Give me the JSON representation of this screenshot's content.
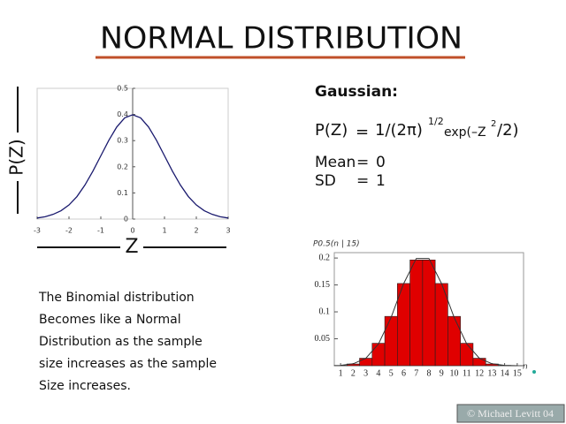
{
  "title": "NORMAL DISTRIBUTION",
  "gaussian": {
    "heading": "Gaussian:",
    "formula": {
      "lhs": "P(Z)",
      "eq": "=",
      "base": "1/(2π)",
      "power": "1/2",
      "fn": "exp(–Z",
      "square": "2",
      "tail": "/2)"
    },
    "stats": [
      [
        "Mean",
        "=",
        "0"
      ],
      [
        "SD",
        "=",
        "1"
      ]
    ]
  },
  "text": [
    "The Binomial distribution",
    "Becomes like a Normal",
    "Distribution as the sample",
    "size increases as the sample",
    "Size increases."
  ],
  "footer": "© Michael Levitt 04",
  "chart_data": [
    {
      "type": "line",
      "xlabel": "Z",
      "ylabel": "P(Z)",
      "x": [
        -3,
        -2.75,
        -2.5,
        -2.25,
        -2,
        -1.75,
        -1.5,
        -1.25,
        -1,
        -0.75,
        -0.5,
        -0.25,
        0,
        0.25,
        0.5,
        0.75,
        1,
        1.25,
        1.5,
        1.75,
        2,
        2.25,
        2.5,
        2.75,
        3
      ],
      "values": [
        0.004,
        0.009,
        0.018,
        0.032,
        0.054,
        0.086,
        0.13,
        0.183,
        0.242,
        0.301,
        0.352,
        0.387,
        0.399,
        0.387,
        0.352,
        0.301,
        0.242,
        0.183,
        0.13,
        0.086,
        0.054,
        0.032,
        0.018,
        0.009,
        0.004
      ],
      "color": "#1a1a6e",
      "xlim": [
        -3,
        3
      ],
      "ylim": [
        0,
        0.5
      ],
      "xticks": [
        -3,
        -2,
        -1,
        0,
        1,
        2,
        3
      ],
      "yticks": [
        0,
        0.1,
        0.2,
        0.3,
        0.4,
        0.5
      ]
    },
    {
      "type": "bar",
      "xlabel": "n",
      "ylabel": "P0.5(n | 15)",
      "x": [
        1,
        2,
        3,
        4,
        5,
        6,
        7,
        8,
        9,
        10,
        11,
        12,
        13,
        14,
        15
      ],
      "series": [
        {
          "type": "bar",
          "color": "#e00000",
          "values": [
            0.0005,
            0.0032,
            0.0139,
            0.0417,
            0.0916,
            0.1527,
            0.1964,
            0.1964,
            0.1527,
            0.0916,
            0.0417,
            0.0139,
            0.0032,
            0.0005,
            3e-05
          ]
        },
        {
          "type": "line",
          "color": "#333333",
          "values": [
            0.0007,
            0.0036,
            0.0138,
            0.0403,
            0.0895,
            0.1526,
            0.1992,
            0.1992,
            0.1526,
            0.0895,
            0.0403,
            0.0138,
            0.0036,
            0.0007,
            0.0001
          ]
        }
      ],
      "xlim": [
        0.5,
        15.5
      ],
      "ylim": [
        0,
        0.21
      ],
      "xticks": [
        1,
        2,
        3,
        4,
        5,
        6,
        7,
        8,
        9,
        10,
        11,
        12,
        13,
        14,
        15
      ],
      "yticks": [
        0.05,
        0.1,
        0.15,
        0.2
      ]
    }
  ]
}
